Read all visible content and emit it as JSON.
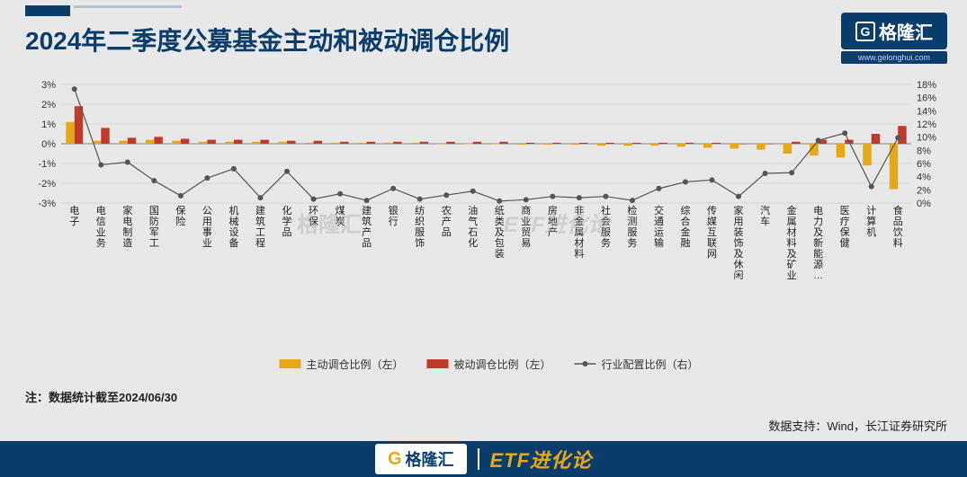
{
  "title": "2024年二季度公募基金主动和被动调仓比例",
  "logo": {
    "brand": "格隆汇",
    "url": "www.gelonghui.com"
  },
  "note": "注：数据统计截至2024/06/30",
  "source": "数据支持：Wind，长江证券研究所",
  "footer": {
    "brand": "格隆汇",
    "etf": "ETF进化论"
  },
  "watermarks": [
    "格隆汇",
    "ETF进化论"
  ],
  "chart": {
    "type": "bar+line-dual-axis",
    "background": "#e8e8e8",
    "categories": [
      "电子",
      "电信业务",
      "家电制造",
      "国防军工",
      "保险",
      "公用事业",
      "机械设备",
      "建筑工程",
      "化学品",
      "环保",
      "煤炭",
      "建筑产品",
      "银行",
      "纺织服饰",
      "农产品",
      "油气石化",
      "纸类及包装",
      "商业贸易",
      "房地产",
      "非金属材料",
      "社会服务",
      "检测服务",
      "交通运输",
      "综合金融",
      "传媒互联网",
      "家用装饰及休闲",
      "汽车",
      "金属材料及矿业",
      "电力及新能源…",
      "医疗保健",
      "计算机",
      "食品饮料"
    ],
    "left_axis": {
      "min": -3,
      "max": 3,
      "step": 1,
      "unit": "%",
      "grid_color": "#c8c8c8"
    },
    "right_axis": {
      "min": 0,
      "max": 18,
      "step": 2,
      "unit": "%"
    },
    "series": [
      {
        "name": "主动调仓比例（左）",
        "type": "bar",
        "axis": "left",
        "color": "#e6a817",
        "values": [
          1.1,
          0.15,
          0.15,
          0.2,
          0.15,
          0.1,
          0.1,
          0.1,
          0.1,
          0.05,
          0.05,
          0.05,
          0.05,
          0.05,
          0.0,
          0.0,
          0.0,
          -0.05,
          -0.05,
          -0.05,
          -0.1,
          -0.1,
          -0.1,
          -0.15,
          -0.2,
          -0.25,
          -0.3,
          -0.5,
          -0.6,
          -0.7,
          -1.1,
          -2.3
        ]
      },
      {
        "name": "被动调仓比例（左）",
        "type": "bar",
        "axis": "left",
        "color": "#c0392b",
        "values": [
          1.9,
          0.8,
          0.3,
          0.35,
          0.25,
          0.2,
          0.2,
          0.2,
          0.15,
          0.15,
          0.1,
          0.1,
          0.1,
          0.1,
          0.1,
          0.1,
          0.1,
          0.05,
          0.05,
          0.05,
          0.05,
          0.05,
          0.05,
          0.05,
          0.05,
          0.0,
          0.0,
          0.1,
          0.2,
          0.2,
          0.5,
          0.9
        ]
      },
      {
        "name": "行业配置比例（右）",
        "type": "line",
        "axis": "right",
        "color": "#555555",
        "marker": "circle",
        "marker_size": 3,
        "line_width": 1.2,
        "values": [
          17.3,
          5.8,
          6.2,
          3.4,
          1.1,
          3.8,
          5.2,
          0.8,
          4.8,
          0.6,
          1.4,
          0.4,
          2.2,
          0.6,
          1.2,
          1.8,
          0.3,
          0.5,
          1.0,
          0.8,
          1.0,
          0.4,
          2.2,
          3.2,
          3.5,
          1.0,
          4.5,
          4.6,
          9.5,
          10.6,
          2.5,
          9.9
        ]
      }
    ],
    "legend": {
      "position": "bottom-center",
      "fontsize": 12
    },
    "label_fontsize": 11,
    "tick_fontsize": 11
  }
}
